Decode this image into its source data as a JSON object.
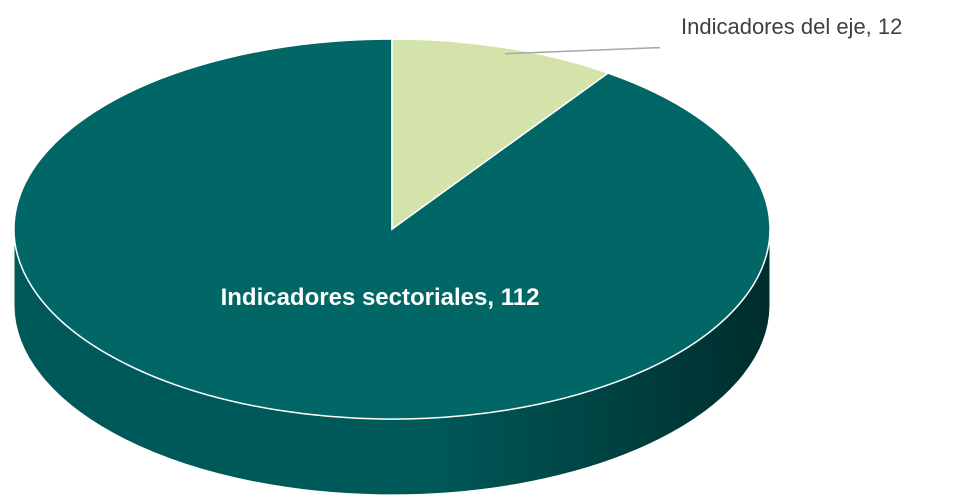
{
  "chart_data": {
    "type": "pie",
    "style": "3d",
    "slices": [
      {
        "label": "Indicadores sectoriales",
        "value": 112,
        "data_label": "Indicadores sectoriales, 112",
        "color": "#006666",
        "label_position": "inside"
      },
      {
        "label": "Indicadores del eje",
        "value": 12,
        "data_label": "Indicadores del eje, 12",
        "color": "#D3E3A9",
        "label_position": "outside"
      }
    ],
    "colors": {
      "side_light": "#005959",
      "side_dark": "#002d2d",
      "edge": "#ffffff",
      "leader_line": "#a6a6a6"
    }
  }
}
